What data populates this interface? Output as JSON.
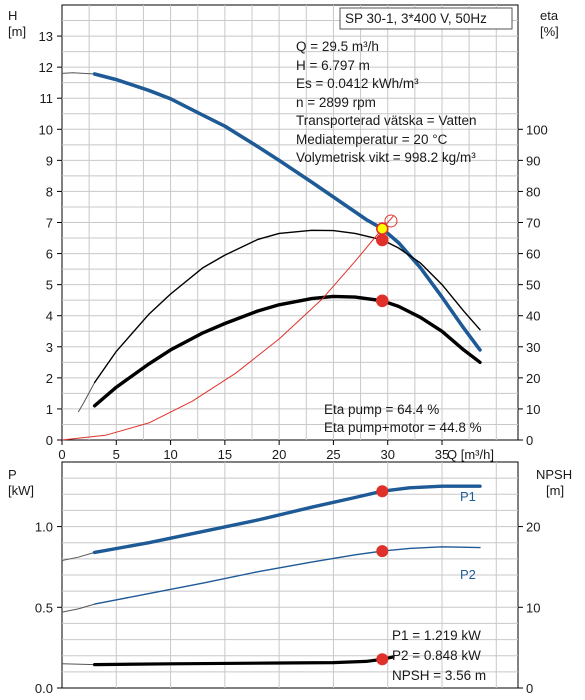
{
  "colors": {
    "primary_curve": "#1e5a96",
    "efficiency": "#000000",
    "npsh_red": "#e0302a",
    "grid": "#c8c8c8",
    "duty_point_fill": "#ffff00"
  },
  "info_box": {
    "model": "SP 30-1, 3*400 V, 50Hz",
    "lines": [
      "Q = 29.5 m³/h",
      "H = 6.797 m",
      "Es = 0.0412 kWh/m³",
      "n = 2899 rpm",
      "Transporterad vätska = Vatten",
      "Mediatemperatur = 20 °C",
      "Volymetrisk vikt = 998.2 kg/m³"
    ],
    "eta_pump": "Eta pump = 64.4 %",
    "eta_pump_motor": "Eta pump+motor = 44.8 %",
    "p1": "P1 = 1.219 kW",
    "p2": "P2 = 0.848 kW",
    "npsh": "NPSH = 3.56 m"
  },
  "chart_data": [
    {
      "type": "line",
      "x_label": "Q [m³/h]",
      "y_left_label": [
        "H",
        "[m]"
      ],
      "y_right_label": [
        "eta",
        "[%]"
      ],
      "xlim": [
        0,
        42
      ],
      "xticks": [
        0,
        5,
        10,
        15,
        20,
        25,
        30,
        35
      ],
      "ylim_left": [
        0,
        14
      ],
      "yticks_left": [
        0,
        1,
        2,
        3,
        4,
        5,
        6,
        7,
        8,
        9,
        10,
        11,
        12,
        13
      ],
      "ylim_right": [
        0,
        140
      ],
      "yticks_right": [
        0,
        10,
        20,
        30,
        40,
        50,
        60,
        70,
        80,
        90,
        100
      ],
      "series": [
        {
          "key": "H",
          "axis": "left",
          "extension": [
            [
              0,
              11.8
            ],
            [
              1,
              11.82
            ],
            [
              2,
              11.8
            ],
            [
              3,
              11.78
            ]
          ],
          "values": [
            [
              3,
              11.78
            ],
            [
              5,
              11.6
            ],
            [
              8,
              11.25
            ],
            [
              10,
              10.98
            ],
            [
              13,
              10.45
            ],
            [
              15,
              10.1
            ],
            [
              18,
              9.45
            ],
            [
              20,
              9.0
            ],
            [
              23,
              8.3
            ],
            [
              25,
              7.82
            ],
            [
              28,
              7.1
            ],
            [
              29.5,
              6.8
            ],
            [
              31,
              6.35
            ],
            [
              33,
              5.55
            ],
            [
              35,
              4.6
            ],
            [
              37,
              3.6
            ],
            [
              38.5,
              2.9
            ]
          ]
        },
        {
          "key": "eta_pump",
          "axis": "right",
          "extension": [
            [
              1.5,
              9
            ],
            [
              2,
              12
            ],
            [
              3,
              18.5
            ]
          ],
          "values": [
            [
              3,
              18.5
            ],
            [
              5,
              28.5
            ],
            [
              8,
              40.5
            ],
            [
              10,
              47
            ],
            [
              13,
              55.5
            ],
            [
              15,
              59.5
            ],
            [
              18,
              64.5
            ],
            [
              20,
              66.5
            ],
            [
              23,
              67.5
            ],
            [
              25,
              67.4
            ],
            [
              27,
              66.5
            ],
            [
              29.5,
              64.4
            ],
            [
              31,
              61.8
            ],
            [
              33,
              57
            ],
            [
              35,
              50
            ],
            [
              37,
              41.5
            ],
            [
              38.5,
              35.5
            ]
          ]
        },
        {
          "key": "eta_total",
          "axis": "right",
          "values": [
            [
              3,
              11
            ],
            [
              5,
              17
            ],
            [
              8,
              24.5
            ],
            [
              10,
              29
            ],
            [
              13,
              34.5
            ],
            [
              15,
              37.5
            ],
            [
              18,
              41.5
            ],
            [
              20,
              43.5
            ],
            [
              23,
              45.5
            ],
            [
              25,
              46.2
            ],
            [
              27,
              46
            ],
            [
              29.5,
              44.8
            ],
            [
              31,
              43
            ],
            [
              33,
              39.5
            ],
            [
              35,
              35
            ],
            [
              37,
              29
            ],
            [
              38.5,
              25
            ]
          ]
        },
        {
          "key": "npsh_overload",
          "axis": "left",
          "values": [
            [
              0,
              0
            ],
            [
              4,
              0.15
            ],
            [
              8,
              0.55
            ],
            [
              12,
              1.25
            ],
            [
              16,
              2.15
            ],
            [
              20,
              3.25
            ],
            [
              24,
              4.55
            ],
            [
              27,
              5.75
            ],
            [
              29.5,
              6.8
            ],
            [
              30.5,
              7.2
            ]
          ]
        }
      ],
      "markers": [
        {
          "x": 29.5,
          "value": 6.8,
          "axis": "left",
          "fill": "yellow"
        },
        {
          "x": 29.5,
          "value": 64.4,
          "axis": "right",
          "fill": "red"
        },
        {
          "x": 29.5,
          "value": 44.8,
          "axis": "right",
          "fill": "red"
        }
      ]
    },
    {
      "type": "line",
      "y_left_label": [
        "P",
        "[kW]"
      ],
      "y_right_label": [
        "NPSH",
        "[m]"
      ],
      "xlim": [
        0,
        42
      ],
      "ylim_left": [
        0,
        1.4
      ],
      "yticks_left": [
        0.0,
        0.5,
        1.0
      ],
      "ylim_right": [
        0,
        28
      ],
      "yticks_right": [
        0,
        10,
        20
      ],
      "series": [
        {
          "key": "P1",
          "name": "P1",
          "axis": "left",
          "extension": [
            [
              0,
              0.79
            ],
            [
              1.5,
              0.81
            ],
            [
              3,
              0.84
            ]
          ],
          "values": [
            [
              3,
              0.84
            ],
            [
              8,
              0.9
            ],
            [
              13,
              0.97
            ],
            [
              18,
              1.04
            ],
            [
              23,
              1.12
            ],
            [
              27,
              1.18
            ],
            [
              29.5,
              1.219
            ],
            [
              32,
              1.24
            ],
            [
              35,
              1.25
            ],
            [
              38.5,
              1.25
            ]
          ]
        },
        {
          "key": "P2",
          "name": "P2",
          "axis": "left",
          "extension": [
            [
              0,
              0.47
            ],
            [
              1.5,
              0.49
            ],
            [
              3,
              0.52
            ]
          ],
          "values": [
            [
              3,
              0.52
            ],
            [
              8,
              0.585
            ],
            [
              13,
              0.65
            ],
            [
              18,
              0.72
            ],
            [
              23,
              0.78
            ],
            [
              27,
              0.825
            ],
            [
              29.5,
              0.848
            ],
            [
              32,
              0.865
            ],
            [
              35,
              0.875
            ],
            [
              38.5,
              0.87
            ]
          ]
        },
        {
          "key": "NPSH",
          "axis": "right",
          "extension": [
            [
              0,
              3.0
            ],
            [
              3,
              2.9
            ]
          ],
          "values": [
            [
              3,
              2.9
            ],
            [
              10,
              3.0
            ],
            [
              20,
              3.1
            ],
            [
              25,
              3.15
            ],
            [
              28,
              3.3
            ],
            [
              29.5,
              3.56
            ],
            [
              30.5,
              3.85
            ]
          ]
        }
      ],
      "markers": [
        {
          "x": 29.5,
          "value": 1.219,
          "axis": "left",
          "fill": "red"
        },
        {
          "x": 29.5,
          "value": 0.848,
          "axis": "left",
          "fill": "red"
        },
        {
          "x": 29.5,
          "value": 3.56,
          "axis": "right",
          "fill": "red"
        }
      ]
    }
  ]
}
